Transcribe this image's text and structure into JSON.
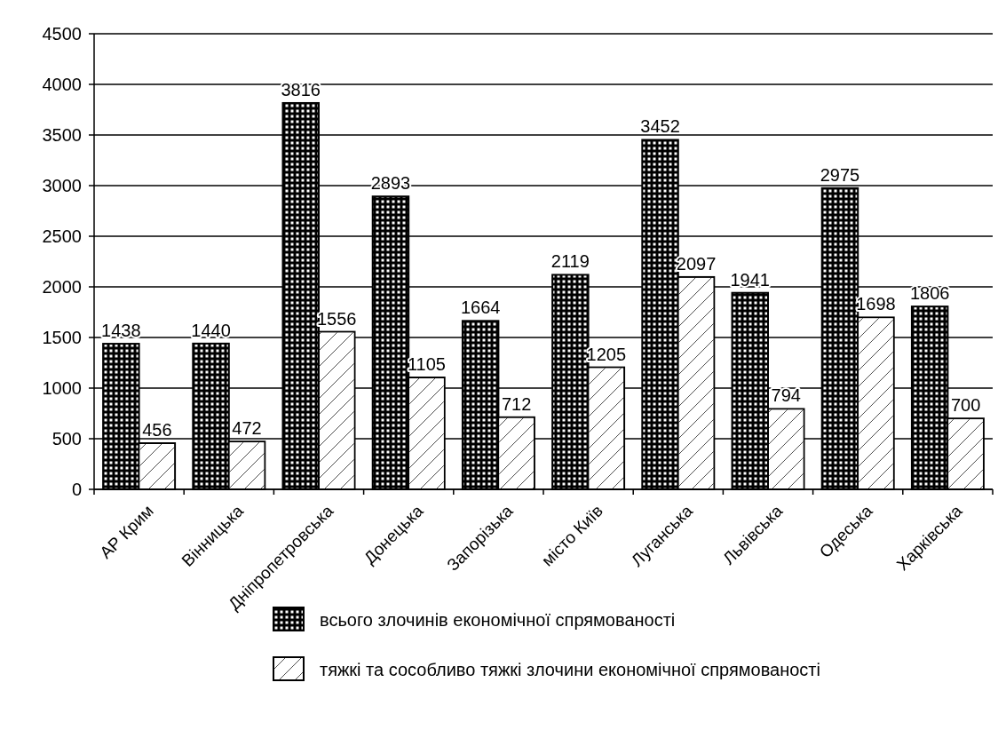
{
  "chart_data": {
    "type": "bar",
    "categories": [
      "АР Крим",
      "Вінницька",
      "Дніпропетровська",
      "Донецька",
      "Запорізька",
      "місто Київ",
      "Луганська",
      "Львівська",
      "Одеська",
      "Харківська"
    ],
    "series": [
      {
        "name": "всього злочинів економічної спрямованості",
        "color": "#000000",
        "values": [
          1438,
          1440,
          3816,
          2893,
          1664,
          2119,
          3452,
          1941,
          2975,
          1806
        ]
      },
      {
        "name": "тяжкі та сособливо тяжкі злочини економічної спрямованості",
        "color": "#ffffff",
        "values": [
          456,
          472,
          1556,
          1105,
          712,
          1205,
          2097,
          794,
          1698,
          700
        ]
      }
    ],
    "ylim": [
      0,
      4500
    ],
    "yticks": [
      0,
      500,
      1000,
      1500,
      2000,
      2500,
      3000,
      3500,
      4000,
      4500
    ],
    "grid": "y",
    "data_labels": true,
    "legend": "bottom"
  }
}
